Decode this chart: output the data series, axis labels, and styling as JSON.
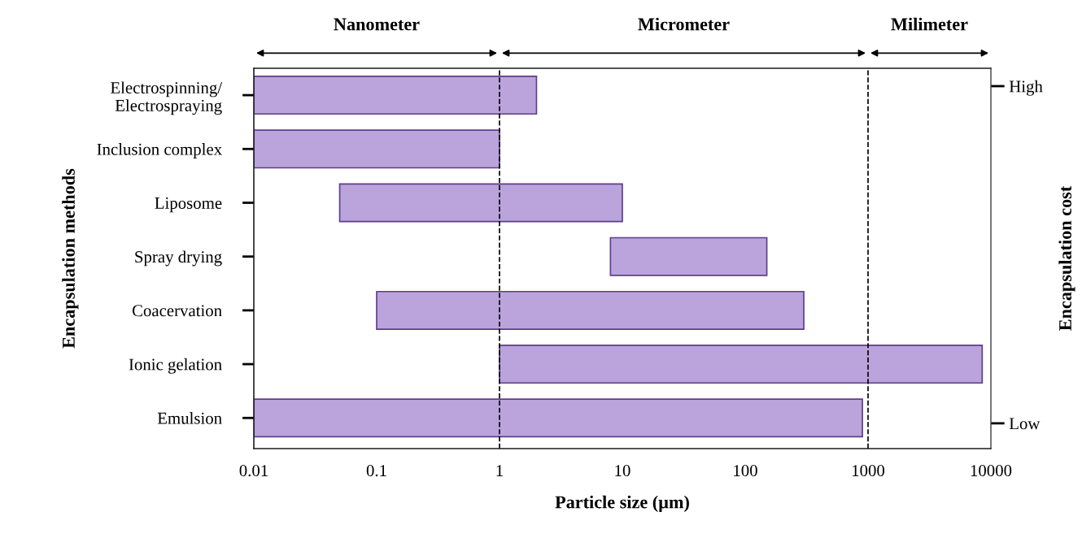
{
  "chart_data": {
    "type": "bar",
    "orientation": "horizontal",
    "log": "x",
    "categories": [
      "Electrospinning/\nElectrospraying",
      "Inclusion complex",
      "Liposome",
      "Spray drying",
      "Coacervation",
      "Ionic gelation",
      "Emulsion"
    ],
    "base": [
      0.01,
      0.01,
      0.05,
      8,
      0.1,
      1,
      0.01
    ],
    "values": [
      1.99,
      0.99,
      9.95,
      142,
      299.9,
      8499,
      899.99
    ],
    "color": "#bba3dc",
    "xlim": [
      0.01,
      10000
    ],
    "xticks": [
      0.01,
      0.1,
      1,
      10,
      100,
      1000,
      10000
    ],
    "annotations": [
      "Nanometer",
      "Micrometer",
      "Milimeter",
      "High",
      "Low"
    ],
    "xlabel": "Particle size (µm)",
    "ylabel": "Encapsulation methods",
    "y2label": "Encapsulation cost",
    "ref_lines": [
      {
        "axis": "x",
        "value": 1,
        "line_style": "dashed",
        "color": "#000000"
      },
      {
        "axis": "x",
        "value": 1000,
        "line_style": "dashed",
        "color": "#000000"
      }
    ],
    "grid": false,
    "legend": false
  }
}
